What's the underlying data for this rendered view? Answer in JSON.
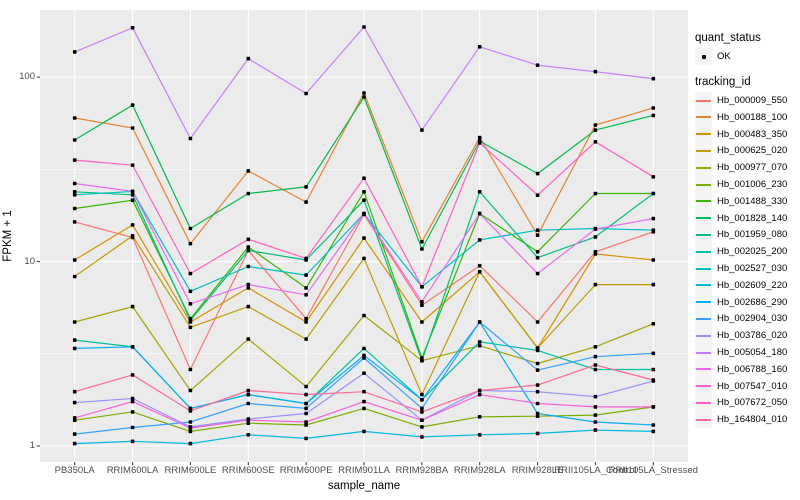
{
  "chart_data": {
    "type": "line",
    "title": "",
    "xlabel": "sample_name",
    "ylabel": "FPKM + 1",
    "y_scale": "log10",
    "ylim": [
      1,
      230
    ],
    "y_ticks": [
      1,
      10,
      100
    ],
    "y_minor_ticks": [
      3.1623,
      31.623
    ],
    "grid": true,
    "legend_position": "right",
    "categories": [
      "PB350LA",
      "RRIM600LA",
      "RRIM600LE",
      "RRIM600SE",
      "RRIM600PE",
      "RRIM901LA",
      "RRIM928BA",
      "RRIM928LA",
      "RRIM928LE",
      "RRII105LA_Control",
      "RRII105LA_Stressed"
    ],
    "legend": {
      "quant_status_title": "quant_status",
      "quant_status_items": [
        "OK"
      ],
      "tracking_id_title": "tracking_id"
    },
    "marker": {
      "shape": "square-dot",
      "color": "#000000",
      "size": 3.6
    },
    "colors": {
      "panel_bg": "#EBEBEB",
      "grid": "#FFFFFF",
      "tick_text": "#4D4D4D",
      "axis_title": "#000000",
      "tick_mark": "#333333"
    },
    "series": [
      {
        "name": "Hb_000009_550",
        "color": "#F8766D",
        "values": [
          16.4,
          13.5,
          2.6,
          11.5,
          4.9,
          18.0,
          5.8,
          9.5,
          4.7,
          11.3,
          14.5
        ]
      },
      {
        "name": "Hb_000188_100",
        "color": "#EA8331",
        "values": [
          60.0,
          53.0,
          12.5,
          31.0,
          21.0,
          82.0,
          12.8,
          47.0,
          13.9,
          55.0,
          68.0
        ]
      },
      {
        "name": "Hb_000483_350",
        "color": "#D89000",
        "values": [
          10.2,
          15.8,
          4.7,
          7.2,
          4.7,
          13.4,
          4.7,
          8.8,
          3.4,
          11.0,
          10.2
        ]
      },
      {
        "name": "Hb_000625_020",
        "color": "#C09B00",
        "values": [
          8.3,
          13.8,
          4.4,
          5.7,
          3.8,
          10.4,
          1.9,
          8.8,
          3.4,
          7.5,
          7.5
        ]
      },
      {
        "name": "Hb_000977_070",
        "color": "#A3A500",
        "values": [
          4.7,
          5.7,
          2.0,
          3.8,
          2.1,
          5.1,
          2.9,
          3.5,
          2.8,
          3.45,
          4.6
        ]
      },
      {
        "name": "Hb_001006_230",
        "color": "#7CAE00",
        "values": [
          1.38,
          1.53,
          1.2,
          1.33,
          1.3,
          1.6,
          1.27,
          1.44,
          1.45,
          1.47,
          1.63
        ]
      },
      {
        "name": "Hb_001488_330",
        "color": "#39B600",
        "values": [
          19.4,
          21.5,
          4.9,
          12.0,
          7.2,
          23.9,
          3.0,
          18.2,
          11.3,
          23.4,
          23.4
        ]
      },
      {
        "name": "Hb_001828_140",
        "color": "#00BB4E",
        "values": [
          45.6,
          70.5,
          15.1,
          23.4,
          25.4,
          78.0,
          11.7,
          45.0,
          30.0,
          51.6,
          62.0
        ]
      },
      {
        "name": "Hb_001959_080",
        "color": "#00BF7D",
        "values": [
          23.9,
          23.0,
          4.8,
          11.5,
          10.2,
          21.5,
          2.9,
          23.9,
          10.5,
          13.6,
          23.4
        ]
      },
      {
        "name": "Hb_002025_200",
        "color": "#00C1A3",
        "values": [
          3.75,
          3.45,
          1.6,
          1.9,
          1.7,
          3.38,
          1.78,
          3.67,
          3.3,
          2.6,
          2.6
        ]
      },
      {
        "name": "Hb_002527_030",
        "color": "#00BFC4",
        "values": [
          23.0,
          24.0,
          6.9,
          9.4,
          8.45,
          18.2,
          7.3,
          13.1,
          14.8,
          15.1,
          14.8
        ]
      },
      {
        "name": "Hb_002609_220",
        "color": "#00BAE0",
        "values": [
          1.03,
          1.06,
          1.03,
          1.15,
          1.1,
          1.2,
          1.12,
          1.15,
          1.17,
          1.22,
          1.2
        ]
      },
      {
        "name": "Hb_002686_290",
        "color": "#00B0F6",
        "values": [
          3.38,
          3.45,
          1.6,
          1.9,
          1.7,
          3.1,
          1.78,
          4.7,
          1.5,
          1.35,
          1.3
        ]
      },
      {
        "name": "Hb_002904_030",
        "color": "#35A2FF",
        "values": [
          1.16,
          1.26,
          1.35,
          1.7,
          1.6,
          3.0,
          1.6,
          4.7,
          2.58,
          3.05,
          3.18
        ]
      },
      {
        "name": "Hb_003786_020",
        "color": "#9590FF",
        "values": [
          1.72,
          1.81,
          1.27,
          1.4,
          1.5,
          2.48,
          1.38,
          2.0,
          1.97,
          1.85,
          2.25
        ]
      },
      {
        "name": "Hb_005054_180",
        "color": "#C77CFF",
        "values": [
          137.0,
          185.0,
          46.5,
          126.0,
          81.5,
          187.0,
          51.6,
          146.0,
          116.0,
          107.0,
          98.0
        ]
      },
      {
        "name": "Hb_006788_160",
        "color": "#E76BF3",
        "values": [
          26.5,
          24.0,
          5.9,
          7.5,
          6.6,
          18.2,
          6.05,
          18.2,
          8.6,
          15.0,
          17.1
        ]
      },
      {
        "name": "Hb_007547_010",
        "color": "#FA62DB",
        "values": [
          1.42,
          1.74,
          1.25,
          1.38,
          1.35,
          1.74,
          1.38,
          1.9,
          1.7,
          1.63,
          1.63
        ]
      },
      {
        "name": "Hb_007672_050",
        "color": "#FF61C3",
        "values": [
          35.5,
          33.3,
          8.6,
          13.2,
          10.4,
          28.3,
          7.3,
          44.0,
          22.9,
          44.6,
          28.8
        ]
      },
      {
        "name": "Hb_164804_010",
        "color": "#FF6A98",
        "values": [
          1.97,
          2.43,
          1.55,
          2.0,
          1.9,
          1.97,
          1.53,
          2.0,
          2.14,
          2.75,
          2.28
        ]
      }
    ]
  }
}
